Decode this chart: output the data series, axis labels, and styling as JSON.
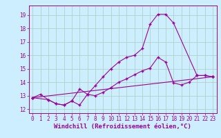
{
  "xlabel": "Windchill (Refroidissement éolien,°C)",
  "bg_color": "#cceeff",
  "line_color": "#990099",
  "grid_color": "#aaccbb",
  "xlim": [
    -0.5,
    23.5
  ],
  "ylim": [
    11.7,
    19.7
  ],
  "yticks": [
    12,
    13,
    14,
    15,
    16,
    17,
    18,
    19
  ],
  "xticks": [
    0,
    1,
    2,
    3,
    4,
    5,
    6,
    7,
    8,
    9,
    10,
    11,
    12,
    13,
    14,
    15,
    16,
    17,
    18,
    19,
    20,
    21,
    22,
    23
  ],
  "series1_x": [
    0,
    1,
    2,
    3,
    4,
    5,
    6,
    7,
    8,
    9,
    10,
    11,
    12,
    13,
    14,
    15,
    16,
    17,
    18,
    21,
    22,
    23
  ],
  "series1_y": [
    12.85,
    13.1,
    12.7,
    12.4,
    12.3,
    12.6,
    13.5,
    13.1,
    13.75,
    14.4,
    15.0,
    15.5,
    15.85,
    16.0,
    16.5,
    18.3,
    19.05,
    19.05,
    18.4,
    14.5,
    14.5,
    14.4
  ],
  "series2_x": [
    0,
    2,
    3,
    4,
    5,
    6,
    7,
    8,
    9,
    10,
    11,
    12,
    13,
    14,
    15,
    16,
    17,
    18,
    19,
    20,
    21,
    22,
    23
  ],
  "series2_y": [
    12.85,
    12.7,
    12.4,
    12.3,
    12.6,
    12.3,
    13.1,
    13.0,
    13.25,
    13.6,
    14.0,
    14.25,
    14.55,
    14.85,
    15.05,
    15.85,
    15.5,
    13.95,
    13.8,
    14.0,
    14.5,
    14.5,
    14.4
  ],
  "series3_x": [
    0,
    23
  ],
  "series3_y": [
    12.85,
    14.4
  ],
  "label_fontsize": 6.5,
  "tick_fontsize": 5.5
}
